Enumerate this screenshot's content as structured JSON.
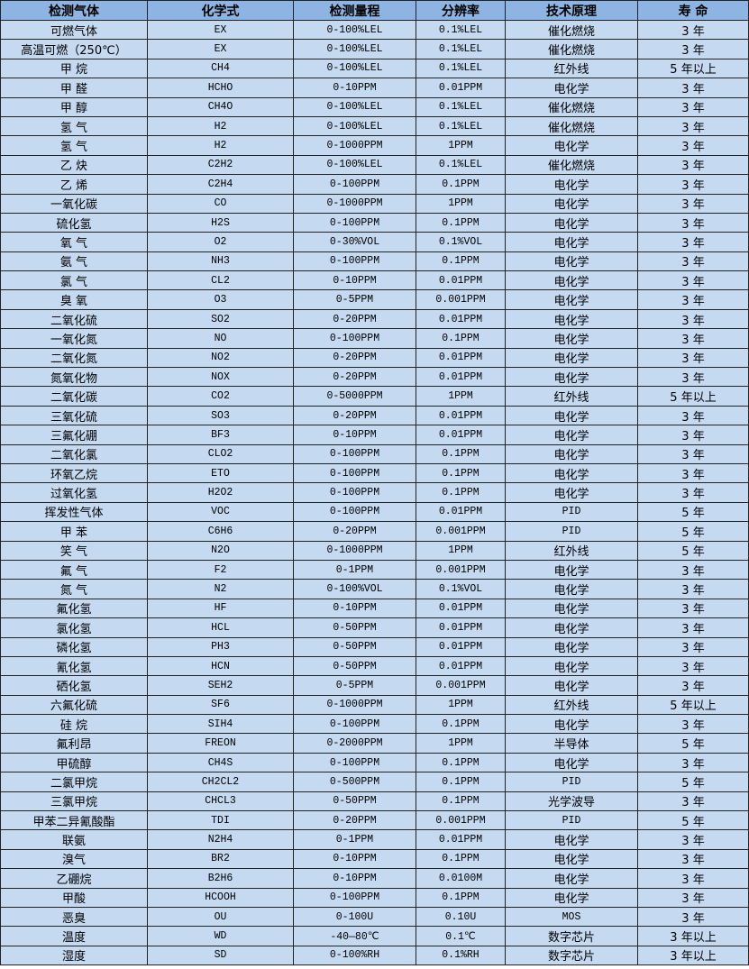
{
  "colors": {
    "header_bg": "#8db4e2",
    "body_bg": "#c5d9f1",
    "border": "#222222"
  },
  "headers": [
    "检测气体",
    "化学式",
    "检测量程",
    "分辨率",
    "技术原理",
    "寿 命"
  ],
  "rows": [
    [
      "可燃气体",
      "EX",
      "0-100%LEL",
      "0.1%LEL",
      "催化燃烧",
      "3 年"
    ],
    [
      "高温可燃（250℃）",
      "EX",
      "0-100%LEL",
      "0.1%LEL",
      "催化燃烧",
      "3 年"
    ],
    [
      "甲 烷",
      "CH4",
      "0-100%LEL",
      "0.1%LEL",
      "红外线",
      "5 年以上"
    ],
    [
      "甲 醛",
      "HCHO",
      "0-10PPM",
      "0.01PPM",
      "电化学",
      "3 年"
    ],
    [
      "甲 醇",
      "CH4O",
      "0-100%LEL",
      "0.1%LEL",
      "催化燃烧",
      "3 年"
    ],
    [
      "氢 气",
      "H2",
      "0-100%LEL",
      "0.1%LEL",
      "催化燃烧",
      "3 年"
    ],
    [
      "氢 气",
      "H2",
      "0-1000PPM",
      "1PPM",
      "电化学",
      "3 年"
    ],
    [
      "乙 炔",
      "C2H2",
      "0-100%LEL",
      "0.1%LEL",
      "催化燃烧",
      "3 年"
    ],
    [
      "乙 烯",
      "C2H4",
      "0-100PPM",
      "0.1PPM",
      "电化学",
      "3 年"
    ],
    [
      "一氧化碳",
      "CO",
      "0-1000PPM",
      "1PPM",
      "电化学",
      "3 年"
    ],
    [
      "硫化氢",
      "H2S",
      "0-100PPM",
      "0.1PPM",
      "电化学",
      "3 年"
    ],
    [
      "氧 气",
      "O2",
      "0-30%VOL",
      "0.1%VOL",
      "电化学",
      "3 年"
    ],
    [
      "氨 气",
      "NH3",
      "0-100PPM",
      "0.1PPM",
      "电化学",
      "3 年"
    ],
    [
      "氯 气",
      "CL2",
      "0-10PPM",
      "0.01PPM",
      "电化学",
      "3 年"
    ],
    [
      "臭 氧",
      "O3",
      "0-5PPM",
      "0.001PPM",
      "电化学",
      "3 年"
    ],
    [
      "二氧化硫",
      "SO2",
      "0-20PPM",
      "0.01PPM",
      "电化学",
      "3 年"
    ],
    [
      "一氧化氮",
      "NO",
      "0-100PPM",
      "0.1PPM",
      "电化学",
      "3 年"
    ],
    [
      "二氧化氮",
      "NO2",
      "0-20PPM",
      "0.01PPM",
      "电化学",
      "3 年"
    ],
    [
      "氮氧化物",
      "NOX",
      "0-20PPM",
      "0.01PPM",
      "电化学",
      "3 年"
    ],
    [
      "二氧化碳",
      "CO2",
      "0-5000PPM",
      "1PPM",
      "红外线",
      "5 年以上"
    ],
    [
      "三氧化硫",
      "SO3",
      "0-20PPM",
      "0.01PPM",
      "电化学",
      "3 年"
    ],
    [
      "三氟化硼",
      "BF3",
      "0-10PPM",
      "0.01PPM",
      "电化学",
      "3 年"
    ],
    [
      "二氧化氯",
      "CLO2",
      "0-100PPM",
      "0.1PPM",
      "电化学",
      "3 年"
    ],
    [
      "环氧乙烷",
      "ETO",
      "0-100PPM",
      "0.1PPM",
      "电化学",
      "3 年"
    ],
    [
      "过氧化氢",
      "H2O2",
      "0-100PPM",
      "0.1PPM",
      "电化学",
      "3 年"
    ],
    [
      "挥发性气体",
      "VOC",
      "0-100PPM",
      "0.01PPM",
      "PID",
      "5 年"
    ],
    [
      "甲 苯",
      "C6H6",
      "0-20PPM",
      "0.001PPM",
      "PID",
      "5 年"
    ],
    [
      "笑 气",
      "N2O",
      "0-1000PPM",
      "1PPM",
      "红外线",
      "5 年"
    ],
    [
      "氟 气",
      "F2",
      "0-1PPM",
      "0.001PPM",
      "电化学",
      "3 年"
    ],
    [
      "氮 气",
      "N2",
      "0-100%VOL",
      "0.1%VOL",
      "电化学",
      "3 年"
    ],
    [
      "氟化氢",
      "HF",
      "0-10PPM",
      "0.01PPM",
      "电化学",
      "3 年"
    ],
    [
      "氯化氢",
      "HCL",
      "0-50PPM",
      "0.01PPM",
      "电化学",
      "3 年"
    ],
    [
      "磷化氢",
      "PH3",
      "0-50PPM",
      "0.01PPM",
      "电化学",
      "3 年"
    ],
    [
      "氰化氢",
      "HCN",
      "0-50PPM",
      "0.01PPM",
      "电化学",
      "3 年"
    ],
    [
      "硒化氢",
      "SEH2",
      "0-5PPM",
      "0.001PPM",
      "电化学",
      "3 年"
    ],
    [
      "六氟化硫",
      "SF6",
      "0-1000PPM",
      "1PPM",
      "红外线",
      "5 年以上"
    ],
    [
      "硅 烷",
      "SIH4",
      "0-100PPM",
      "0.1PPM",
      "电化学",
      "3 年"
    ],
    [
      "氟利昂",
      "FREON",
      "0-2000PPM",
      "1PPM",
      "半导体",
      "5 年"
    ],
    [
      "甲硫醇",
      "CH4S",
      "0-100PPM",
      "0.1PPM",
      "电化学",
      "3 年"
    ],
    [
      "二氯甲烷",
      "CH2CL2",
      "0-500PPM",
      "0.1PPM",
      "PID",
      "5 年"
    ],
    [
      "三氯甲烷",
      "CHCL3",
      "0-50PPM",
      "0.1PPM",
      "光学波导",
      "3 年"
    ],
    [
      "甲苯二异氰酸酯",
      "TDI",
      "0-20PPM",
      "0.001PPM",
      "PID",
      "5 年"
    ],
    [
      "联氨",
      "N2H4",
      "0-1PPM",
      "0.01PPM",
      "电化学",
      "3 年"
    ],
    [
      "溴气",
      "BR2",
      "0-10PPM",
      "0.1PPM",
      "电化学",
      "3 年"
    ],
    [
      "乙硼烷",
      "B2H6",
      "0-10PPM",
      "0.0100M",
      "电化学",
      "3 年"
    ],
    [
      "甲酸",
      "HCOOH",
      "0-100PPM",
      "0.1PPM",
      "电化学",
      "3 年"
    ],
    [
      "恶臭",
      "OU",
      "0-100U",
      "0.10U",
      "MOS",
      "3 年"
    ],
    [
      "温度",
      "WD",
      "-40—80℃",
      "0.1℃",
      "数字芯片",
      "3 年以上"
    ],
    [
      "湿度",
      "SD",
      "0-100%RH",
      "0.1%RH",
      "数字芯片",
      "3 年以上"
    ]
  ]
}
